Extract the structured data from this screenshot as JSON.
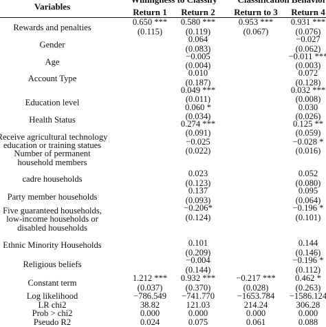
{
  "header": {
    "variables_label": "Variables",
    "group_left_fragment": "Willingness to Classify",
    "group_right_fragment": "Classification Behavior",
    "columns": [
      "Return 1",
      "Return 2",
      "Return to 3",
      "Return 4"
    ]
  },
  "rows": [
    {
      "label": [
        "Rewards and penalties"
      ],
      "coef": [
        "0.650 ***",
        "0.580 ***",
        "0.953 ***",
        "0.931 ***"
      ],
      "se": [
        "(0.115)",
        "(0.119)",
        "(0.067)",
        "(0.076)"
      ]
    },
    {
      "label": [
        "Gender"
      ],
      "coef": [
        "",
        "0.064",
        "",
        "−0.027"
      ],
      "se": [
        "",
        "(0.083)",
        "",
        "(0.062)"
      ]
    },
    {
      "label": [
        "Age"
      ],
      "coef": [
        "",
        "−0.005",
        "",
        "−0.011 ***"
      ],
      "se": [
        "",
        "(0.004)",
        "",
        "(0.003)"
      ]
    },
    {
      "label": [
        "Account Type"
      ],
      "coef": [
        "",
        "0.010",
        "",
        "0.072"
      ],
      "se": [
        "",
        "(0.187)",
        "",
        "(0.128)"
      ]
    },
    {
      "label": [
        "Education level"
      ],
      "coef": [
        "",
        "0.049 ***",
        "",
        "0.032 ***"
      ],
      "se": [
        "",
        "(0.011)",
        "",
        "(0.008)"
      ]
    },
    {
      "label": [
        "Health Status"
      ],
      "coef": [
        "",
        "0.060 *",
        "",
        "0.030"
      ],
      "se": [
        "",
        "(0.034)",
        "",
        "(0.026)"
      ]
    },
    {
      "label": [
        "Receive agricultural technology",
        "education or training statues"
      ],
      "coef": [
        "",
        "0.274 ***",
        "",
        "0.125 **"
      ],
      "se": [
        "",
        "(0.091)",
        "",
        "(0.059)"
      ]
    },
    {
      "label": [
        "Number of permanent",
        "household members"
      ],
      "coef": [
        "",
        "−0.025",
        "",
        "−0.028 *"
      ],
      "se": [
        "",
        "(0.022)",
        "",
        "(0.016)"
      ]
    },
    {
      "label": [
        "cadre households"
      ],
      "coef": [
        "",
        "0.023",
        "",
        "0.052"
      ],
      "se": [
        "",
        "(0.123)",
        "",
        "(0.080)"
      ]
    },
    {
      "label": [
        "Party member households"
      ],
      "coef": [
        "",
        "0.137",
        "",
        "0.095"
      ],
      "se": [
        "",
        "(0.093)",
        "",
        "(0.064)"
      ]
    },
    {
      "label": [
        "Five guaranteed households,",
        "low-income households or",
        "disabled households"
      ],
      "coef": [
        "",
        "−0.206*",
        "",
        "−0.196 *"
      ],
      "se": [
        "",
        "(0.124)",
        "",
        "(0.101)"
      ]
    },
    {
      "label": [
        "Ethnic Minority Households"
      ],
      "coef": [
        "",
        "0.101",
        "",
        "0.144"
      ],
      "se": [
        "",
        "(0.209)",
        "",
        "(0.146)"
      ]
    },
    {
      "label": [
        "Religious beliefs"
      ],
      "coef": [
        "",
        "−0.004",
        "",
        "−0.196 *"
      ],
      "se": [
        "",
        "(0.144)",
        "",
        "(0.112)"
      ]
    },
    {
      "label": [
        "Constant term"
      ],
      "coef": [
        "1.212 ***",
        "0.932 ***",
        "−0.217 ***",
        "0.462 *"
      ],
      "se": [
        "(0.037)",
        "(0.370)",
        "(0.028)",
        "(0.263)"
      ]
    }
  ],
  "stats": [
    {
      "label": "Log likelihood",
      "values": [
        "−786.549",
        "−741.770",
        "−1653.784",
        "−1586.124"
      ]
    },
    {
      "label": "LR chi2",
      "values": [
        "38.82",
        "121.03",
        "214.24",
        "306.28"
      ]
    },
    {
      "label": "Prob > chi2",
      "values": [
        "0.000",
        "0.000",
        "0.000",
        "0.000"
      ]
    },
    {
      "label": "Pseudo R2",
      "values": [
        "0.024",
        "0.075",
        "0.061",
        "0.088"
      ]
    }
  ]
}
